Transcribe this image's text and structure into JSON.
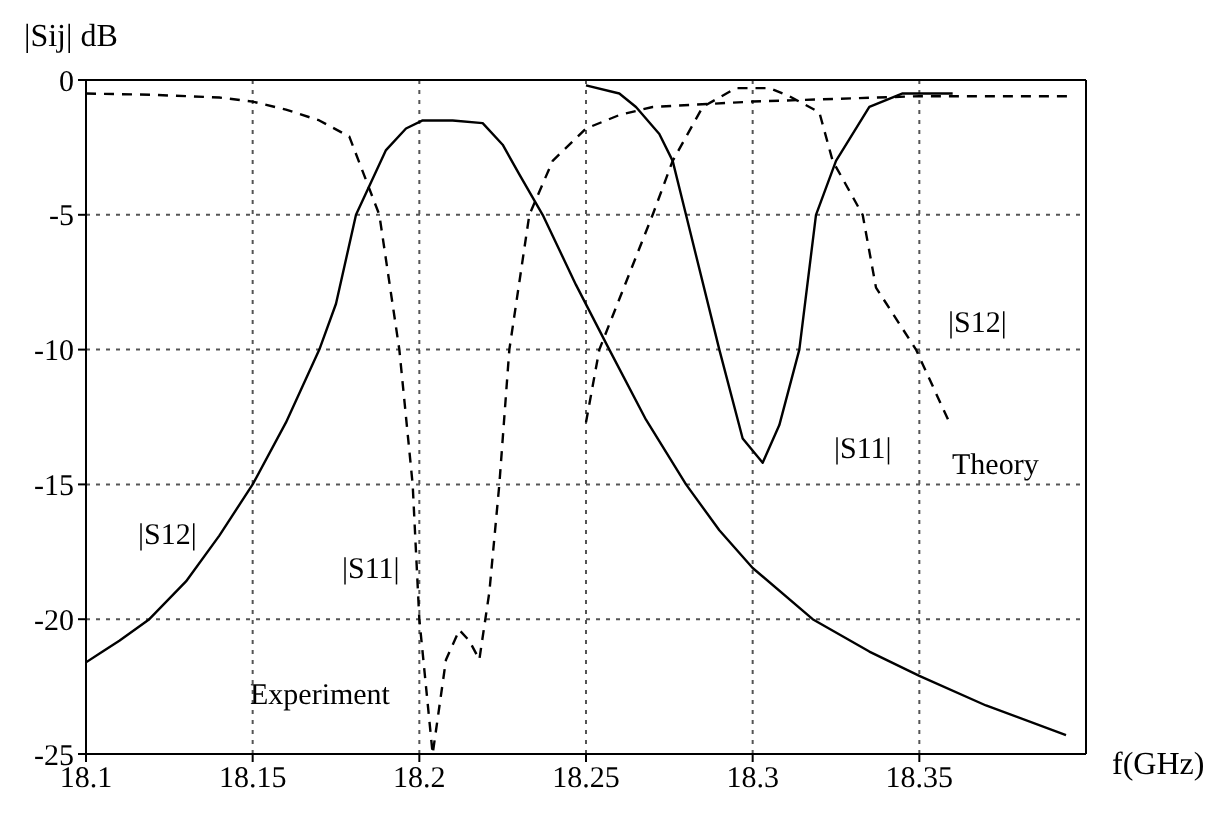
{
  "chart_data": {
    "type": "line",
    "xlabel": "f(GHz)",
    "ylabel": "|Sij| dB",
    "xlim": [
      18.1,
      18.4
    ],
    "xticks": [
      18.1,
      18.15,
      18.2,
      18.25,
      18.3,
      18.35
    ],
    "ylim": [
      -25,
      0
    ],
    "yticks": [
      0,
      -5,
      -10,
      -15,
      -20,
      -25
    ],
    "grid": true,
    "marker": "none",
    "series": [
      {
        "color": "#000000",
        "line_style": "solid",
        "x": [
          18.1,
          18.105,
          18.11,
          18.119,
          18.13,
          18.14,
          18.15,
          18.16,
          18.17,
          18.175,
          18.181,
          18.19,
          18.196,
          18.201,
          18.21,
          18.219,
          18.225,
          18.23,
          18.237,
          18.247,
          18.257,
          18.268,
          18.28,
          18.29,
          18.3,
          18.318,
          18.335,
          18.35,
          18.37,
          18.394
        ],
        "values": [
          -21.6,
          -21.2,
          -20.8,
          -20,
          -18.6,
          -16.9,
          -15,
          -12.7,
          -10,
          -8.3,
          -5,
          -2.6,
          -1.8,
          -1.5,
          -1.5,
          -1.6,
          -2.4,
          -3.5,
          -5,
          -7.6,
          -10,
          -12.6,
          -15,
          -16.7,
          -18.1,
          -20,
          -21.2,
          -22.1,
          -23.2,
          -24.3
        ]
      },
      {
        "color": "#000000",
        "line_style": "dashed",
        "x": [
          18.1,
          18.12,
          18.14,
          18.15,
          18.16,
          18.17,
          18.179,
          18.188,
          18.194,
          18.198,
          18.2,
          18.204,
          18.208,
          18.212,
          18.215,
          18.218,
          18.221,
          18.224,
          18.227,
          18.233,
          18.24,
          18.25,
          18.26,
          18.27,
          18.3,
          18.35,
          18.395
        ],
        "values": [
          -0.5,
          -0.55,
          -0.65,
          -0.8,
          -1.1,
          -1.5,
          -2.1,
          -5,
          -10,
          -15,
          -20,
          -25,
          -21.5,
          -20.4,
          -20.8,
          -21.5,
          -19,
          -15,
          -10,
          -5,
          -3,
          -1.8,
          -1.3,
          -1.0,
          -0.8,
          -0.6,
          -0.6
        ]
      },
      {
        "color": "#000000",
        "line_style": "solid",
        "x": [
          18.25,
          18.26,
          18.265,
          18.272,
          18.276,
          18.28,
          18.29,
          18.297,
          18.303,
          18.308,
          18.314,
          18.319,
          18.325,
          18.335,
          18.345,
          18.36
        ],
        "values": [
          -0.2,
          -0.5,
          -1,
          -2,
          -3,
          -5,
          -10,
          -13.3,
          -14.2,
          -12.8,
          -10,
          -5,
          -3,
          -1,
          -0.5,
          -0.5
        ]
      },
      {
        "color": "#000000",
        "line_style": "dashed",
        "x": [
          18.25,
          18.254,
          18.262,
          18.27,
          18.276,
          18.285,
          18.295,
          18.305,
          18.311,
          18.32,
          18.324,
          18.333,
          18.337,
          18.349,
          18.359
        ],
        "values": [
          -12.7,
          -10,
          -7.5,
          -5,
          -3,
          -1,
          -0.3,
          -0.3,
          -0.6,
          -1.2,
          -3,
          -5,
          -7.7,
          -10,
          -12.7
        ]
      }
    ],
    "annotations": [
      "|S12|",
      "|S11|",
      "Experiment",
      "|S11|",
      "|S12|",
      "Theory"
    ]
  }
}
